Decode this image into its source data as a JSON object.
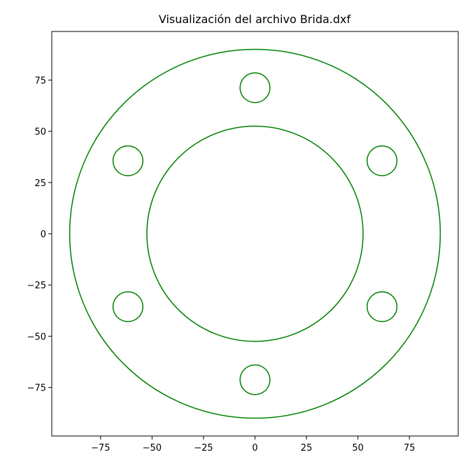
{
  "chart_data": {
    "type": "scatter",
    "title": "Visualización del archivo Brida.dxf",
    "xlabel": "",
    "ylabel": "",
    "xlim": [
      -98.7,
      98.7
    ],
    "ylim": [
      -98.7,
      98.7
    ],
    "grid": false,
    "color": "#008000",
    "x_ticks": [
      {
        "value": -75,
        "label": "−75"
      },
      {
        "value": -50,
        "label": "−50"
      },
      {
        "value": -25,
        "label": "−25"
      },
      {
        "value": 0,
        "label": "0"
      },
      {
        "value": 25,
        "label": "25"
      },
      {
        "value": 50,
        "label": "50"
      },
      {
        "value": 75,
        "label": "75"
      }
    ],
    "y_ticks": [
      {
        "value": 75,
        "label": "75"
      },
      {
        "value": 50,
        "label": "50"
      },
      {
        "value": 25,
        "label": "25"
      },
      {
        "value": 0,
        "label": "0"
      },
      {
        "value": -25,
        "label": "−25"
      },
      {
        "value": -50,
        "label": "−50"
      },
      {
        "value": -75,
        "label": "−75"
      }
    ],
    "circles": [
      {
        "name": "outer-circle",
        "cx": 0,
        "cy": 0,
        "r": 90
      },
      {
        "name": "inner-circle",
        "cx": 0,
        "cy": 0,
        "r": 52.5
      },
      {
        "name": "bolt-hole-1",
        "cx": 0,
        "cy": 71.25,
        "r": 7.25
      },
      {
        "name": "bolt-hole-2",
        "cx": 61.7,
        "cy": 35.6,
        "r": 7.25
      },
      {
        "name": "bolt-hole-3",
        "cx": 61.7,
        "cy": -35.6,
        "r": 7.25
      },
      {
        "name": "bolt-hole-4",
        "cx": 0,
        "cy": -71.25,
        "r": 7.25
      },
      {
        "name": "bolt-hole-5",
        "cx": -61.7,
        "cy": -35.6,
        "r": 7.25
      },
      {
        "name": "bolt-hole-6",
        "cx": -61.7,
        "cy": 35.6,
        "r": 7.25
      }
    ]
  }
}
